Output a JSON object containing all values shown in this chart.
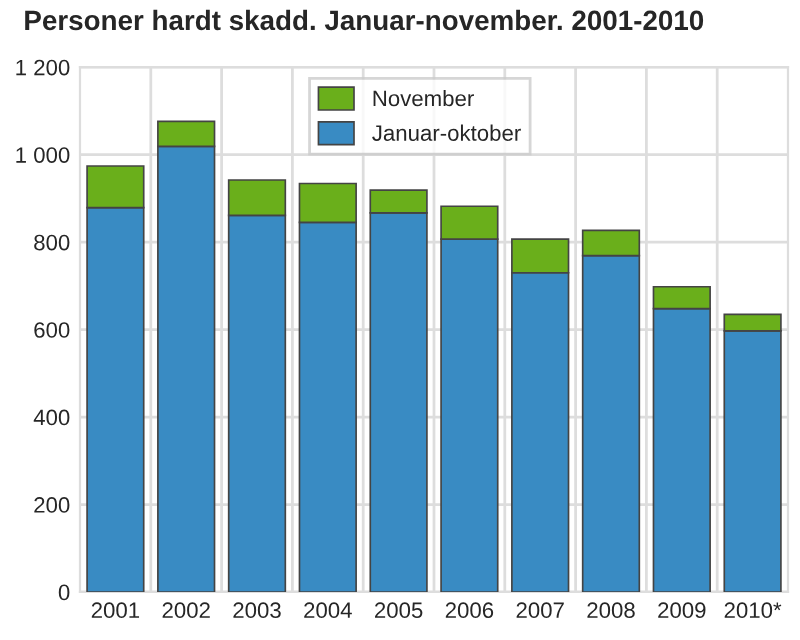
{
  "chart_data": {
    "type": "bar",
    "title": "Personer hardt skadd. Januar-november. 2001-2010",
    "stacked": true,
    "categories": [
      "2001",
      "2002",
      "2003",
      "2004",
      "2005",
      "2006",
      "2007",
      "2008",
      "2009",
      "2010*"
    ],
    "series": [
      {
        "name": "Januar-oktober",
        "color": "#398bc3",
        "values": [
          879,
          1019,
          861,
          845,
          867,
          807,
          730,
          769,
          648,
          597
        ]
      },
      {
        "name": "November",
        "color": "#6aaf1b",
        "values": [
          95,
          57,
          81,
          89,
          52,
          75,
          77,
          58,
          50,
          38
        ]
      }
    ],
    "ylim": [
      0,
      1200
    ],
    "yticks": [
      0,
      200,
      400,
      600,
      800,
      {
        "value": 1000,
        "label": "1 000"
      },
      {
        "value": 1200,
        "label": "1 200"
      }
    ],
    "grid": true,
    "legend": "top"
  }
}
